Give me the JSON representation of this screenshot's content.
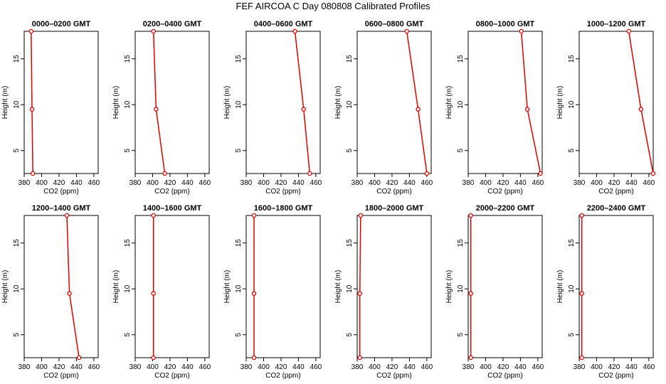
{
  "title": "FEF AIRCOA C  Day 080808  Calibrated Profiles",
  "colors": {
    "series": "#dd0000",
    "axis": "#000000"
  },
  "chart_data": [
    {
      "type": "line",
      "title": "0000–0200 GMT",
      "xlabel": "CO2 (ppm)",
      "ylabel": "Height (m)",
      "xlim": [
        380,
        465
      ],
      "ylim": [
        2.5,
        18
      ],
      "xticks": [
        380,
        400,
        420,
        440,
        460
      ],
      "yticks": [
        5,
        10,
        15
      ],
      "x": [
        388,
        389,
        390
      ],
      "y": [
        18,
        9.5,
        2.5
      ]
    },
    {
      "type": "line",
      "title": "0200–0400 GMT",
      "xlabel": "CO2 (ppm)",
      "ylabel": "Height (m)",
      "xlim": [
        380,
        465
      ],
      "ylim": [
        2.5,
        18
      ],
      "xticks": [
        380,
        400,
        420,
        440,
        460
      ],
      "yticks": [
        5,
        10,
        15
      ],
      "x": [
        401,
        404,
        414
      ],
      "y": [
        18,
        9.5,
        2.5
      ]
    },
    {
      "type": "line",
      "title": "0400–0600 GMT",
      "xlabel": "CO2 (ppm)",
      "ylabel": "Height (m)",
      "xlim": [
        380,
        465
      ],
      "ylim": [
        2.5,
        18
      ],
      "xticks": [
        380,
        400,
        420,
        440,
        460
      ],
      "yticks": [
        5,
        10,
        15
      ],
      "x": [
        436,
        446,
        453
      ],
      "y": [
        18,
        9.5,
        2.5
      ]
    },
    {
      "type": "line",
      "title": "0600–0800 GMT",
      "xlabel": "CO2 (ppm)",
      "ylabel": "Height (m)",
      "xlim": [
        380,
        465
      ],
      "ylim": [
        2.5,
        18
      ],
      "xticks": [
        380,
        400,
        420,
        440,
        460
      ],
      "yticks": [
        5,
        10,
        15
      ],
      "x": [
        437,
        450,
        460
      ],
      "y": [
        18,
        9.5,
        2.5
      ]
    },
    {
      "type": "line",
      "title": "0800–1000 GMT",
      "xlabel": "CO2 (ppm)",
      "ylabel": "Height (m)",
      "xlim": [
        380,
        465
      ],
      "ylim": [
        2.5,
        18
      ],
      "xticks": [
        380,
        400,
        420,
        440,
        460
      ],
      "yticks": [
        5,
        10,
        15
      ],
      "x": [
        441,
        448,
        463
      ],
      "y": [
        18,
        9.5,
        2.5
      ]
    },
    {
      "type": "line",
      "title": "1000–1200 GMT",
      "xlabel": "CO2 (ppm)",
      "ylabel": "Height (m)",
      "xlim": [
        380,
        465
      ],
      "ylim": [
        2.5,
        18
      ],
      "xticks": [
        380,
        400,
        420,
        440,
        460
      ],
      "yticks": [
        5,
        10,
        15
      ],
      "x": [
        437,
        451,
        465
      ],
      "y": [
        18,
        9.5,
        2.5
      ]
    },
    {
      "type": "line",
      "title": "1200–1400 GMT",
      "xlabel": "CO2 (ppm)",
      "ylabel": "Height (m)",
      "xlim": [
        380,
        465
      ],
      "ylim": [
        2.5,
        18
      ],
      "xticks": [
        380,
        400,
        420,
        440,
        460
      ],
      "yticks": [
        5,
        10,
        15
      ],
      "x": [
        429,
        432,
        443
      ],
      "y": [
        18,
        9.5,
        2.5
      ]
    },
    {
      "type": "line",
      "title": "1400–1600 GMT",
      "xlabel": "CO2 (ppm)",
      "ylabel": "Height (m)",
      "xlim": [
        380,
        465
      ],
      "ylim": [
        2.5,
        18
      ],
      "xticks": [
        380,
        400,
        420,
        440,
        460
      ],
      "yticks": [
        5,
        10,
        15
      ],
      "x": [
        401,
        401,
        401
      ],
      "y": [
        18,
        9.5,
        2.5
      ]
    },
    {
      "type": "line",
      "title": "1600–1800 GMT",
      "xlabel": "CO2 (ppm)",
      "ylabel": "Height (m)",
      "xlim": [
        380,
        465
      ],
      "ylim": [
        2.5,
        18
      ],
      "xticks": [
        380,
        400,
        420,
        440,
        460
      ],
      "yticks": [
        5,
        10,
        15
      ],
      "x": [
        389,
        389,
        389
      ],
      "y": [
        18,
        9.5,
        2.5
      ]
    },
    {
      "type": "line",
      "title": "1800–2000 GMT",
      "xlabel": "CO2 (ppm)",
      "ylabel": "Height (m)",
      "xlim": [
        380,
        465
      ],
      "ylim": [
        2.5,
        18
      ],
      "xticks": [
        380,
        400,
        420,
        440,
        460
      ],
      "yticks": [
        5,
        10,
        15
      ],
      "x": [
        384,
        383,
        383
      ],
      "y": [
        18,
        9.5,
        2.5
      ]
    },
    {
      "type": "line",
      "title": "2000–2200 GMT",
      "xlabel": "CO2 (ppm)",
      "ylabel": "Height (m)",
      "xlim": [
        380,
        465
      ],
      "ylim": [
        2.5,
        18
      ],
      "xticks": [
        380,
        400,
        420,
        440,
        460
      ],
      "yticks": [
        5,
        10,
        15
      ],
      "x": [
        383,
        383,
        383
      ],
      "y": [
        18,
        9.5,
        2.5
      ]
    },
    {
      "type": "line",
      "title": "2200–2400 GMT",
      "xlabel": "CO2 (ppm)",
      "ylabel": "Height (m)",
      "xlim": [
        380,
        465
      ],
      "ylim": [
        2.5,
        18
      ],
      "xticks": [
        380,
        400,
        420,
        440,
        460
      ],
      "yticks": [
        5,
        10,
        15
      ],
      "x": [
        383,
        383,
        383
      ],
      "y": [
        18,
        9.5,
        2.5
      ]
    }
  ]
}
